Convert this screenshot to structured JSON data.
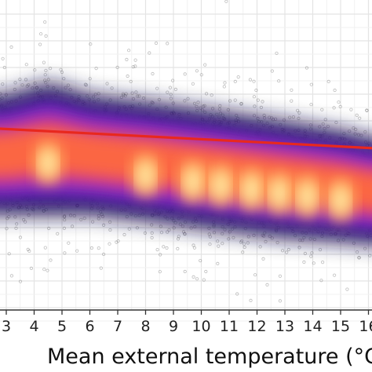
{
  "chart_data": {
    "type": "scatter",
    "title": "",
    "xlabel": "Mean external temperature (°C",
    "ylabel": "",
    "x_visible_range": [
      3,
      16.3
    ],
    "x_ticks": [
      "3",
      "4",
      "5",
      "6",
      "7",
      "8",
      "9",
      "10",
      "11",
      "12",
      "13",
      "14",
      "15",
      "16"
    ],
    "grid": true,
    "point_color": "#555555",
    "density_colors": [
      "#17123a",
      "#4b1fb0",
      "#8a2fcf",
      "#d53a8a",
      "#ff6a3c",
      "#ffb060",
      "#fff0a8"
    ],
    "density_band": [
      {
        "x": 3,
        "center": 0.5,
        "spread": 1.0
      },
      {
        "x": 4.5,
        "center": 0.48,
        "spread": 1.12
      },
      {
        "x": 6,
        "center": 0.5,
        "spread": 1.0
      },
      {
        "x": 8,
        "center": 0.52,
        "spread": 1.0
      },
      {
        "x": 10.5,
        "center": 0.55,
        "spread": 1.0
      },
      {
        "x": 13,
        "center": 0.58,
        "spread": 0.98
      },
      {
        "x": 15,
        "center": 0.6,
        "spread": 0.93
      },
      {
        "x": 16.3,
        "center": 0.62,
        "spread": 0.88
      }
    ],
    "density_hotspots": [
      4.5,
      8,
      9.7,
      10.7,
      11.8,
      12.8,
      13.8,
      15
    ],
    "regression_line": {
      "color": "#e8281e",
      "x": [
        3,
        16.3
      ],
      "y": [
        0.415,
        0.48
      ]
    }
  }
}
